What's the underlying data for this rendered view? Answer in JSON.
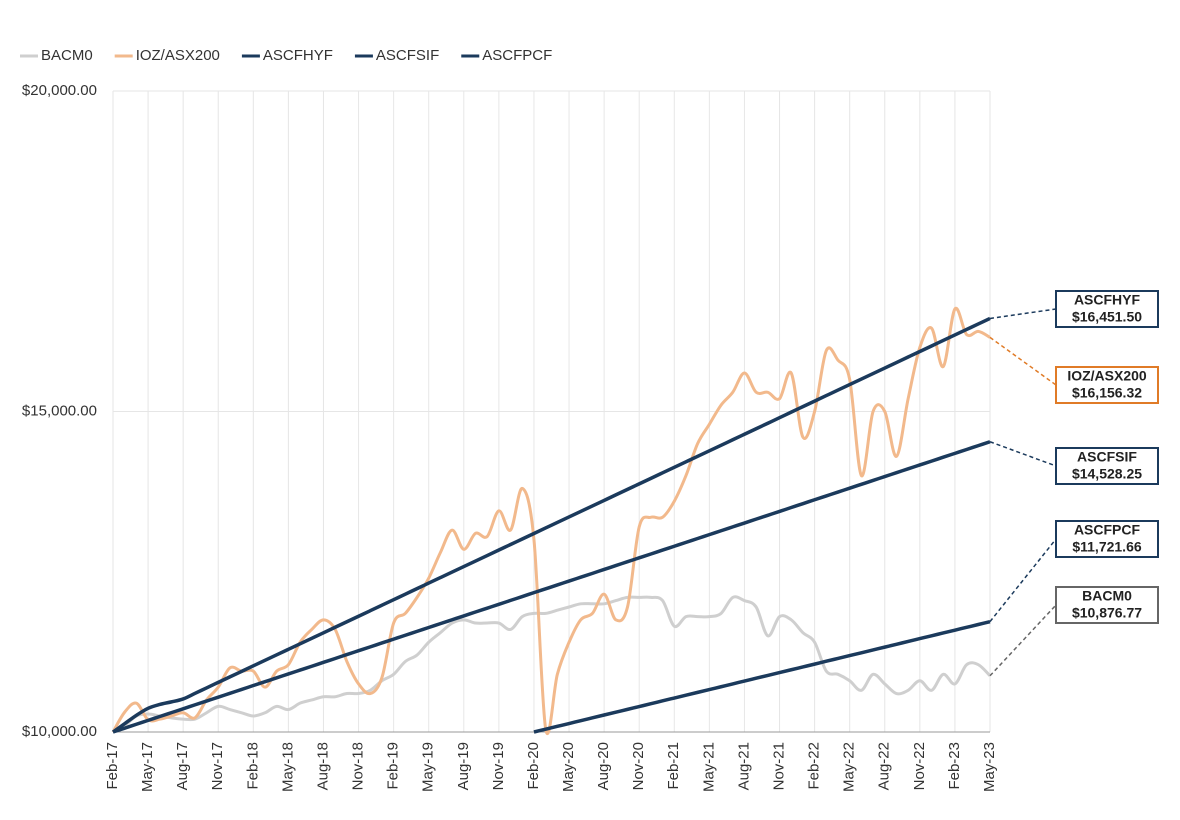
{
  "chart_data": {
    "type": "line",
    "categories": [
      "Feb-17",
      null,
      null,
      "May-17",
      null,
      null,
      "Aug-17",
      null,
      null,
      "Nov-17",
      null,
      null,
      "Feb-18",
      null,
      null,
      "May-18",
      null,
      null,
      "Aug-18",
      null,
      null,
      "Nov-18",
      null,
      null,
      "Feb-19",
      null,
      null,
      "May-19",
      null,
      null,
      "Aug-19",
      null,
      null,
      "Nov-19",
      null,
      null,
      "Feb-20",
      null,
      null,
      "May-20",
      null,
      null,
      "Aug-20",
      null,
      null,
      "Nov-20",
      null,
      null,
      "Feb-21",
      null,
      null,
      "May-21",
      null,
      null,
      "Aug-21",
      null,
      null,
      "Nov-21",
      null,
      null,
      "Feb-22",
      null,
      null,
      "May-22",
      null,
      null,
      "Aug-22",
      null,
      null,
      "Nov-22",
      null,
      null,
      "Feb-23",
      null,
      null,
      "May-23"
    ],
    "ylim": [
      10000,
      20000
    ],
    "yticks": [
      {
        "value": 10000,
        "label": "$10,000.00"
      },
      {
        "value": 15000,
        "label": "$15,000.00"
      },
      {
        "value": 20000,
        "label": "$20,000.00"
      }
    ],
    "grid": true,
    "legend": "top-left",
    "series": [
      {
        "name": "BACM0",
        "color": "#cfcfcf",
        "end_label": "$10,876.77",
        "values": [
          10000,
          10100,
          10250,
          10280,
          10250,
          10220,
          10200,
          10200,
          10300,
          10400,
          10350,
          10300,
          10250,
          10300,
          10400,
          10350,
          10450,
          10500,
          10550,
          10550,
          10600,
          10600,
          10650,
          10800,
          10900,
          11100,
          11200,
          11400,
          11550,
          11700,
          11750,
          11700,
          11700,
          11700,
          11600,
          11800,
          11850,
          11850,
          11900,
          11950,
          12000,
          12000,
          12000,
          12050,
          12100,
          12100,
          12100,
          12050,
          11650,
          11800,
          11800,
          11800,
          11850,
          12100,
          12050,
          11950,
          11500,
          11800,
          11750,
          11550,
          11400,
          10950,
          10900,
          10800,
          10650,
          10900,
          10750,
          10600,
          10650,
          10800,
          10650,
          10900,
          10750,
          11050,
          11050,
          10876.77
        ]
      },
      {
        "name": "IOZ/ASX200",
        "color": "#f2b98c",
        "end_label": "$16,156.32",
        "values": [
          10000,
          10310,
          10450,
          10190,
          10200,
          10250,
          10300,
          10220,
          10500,
          10700,
          11000,
          10950,
          10950,
          10700,
          10950,
          11050,
          11400,
          11600,
          11750,
          11600,
          11100,
          10750,
          10600,
          10850,
          11700,
          11850,
          12100,
          12400,
          12800,
          13150,
          12850,
          13100,
          13050,
          13450,
          13150,
          13800,
          13000,
          10050,
          10900,
          11400,
          11750,
          11850,
          12150,
          11750,
          11950,
          13200,
          13350,
          13350,
          13600,
          14000,
          14500,
          14800,
          15100,
          15300,
          15600,
          15300,
          15300,
          15200,
          15600,
          14600,
          15000,
          15950,
          15800,
          15500,
          14000,
          15000,
          15000,
          14300,
          15200,
          16000,
          16300,
          15700,
          16600,
          16200,
          16250,
          16156.32
        ]
      },
      {
        "name": "ASCFHYF",
        "color": "#1b3a5c",
        "end_label": "$16,451.50",
        "values": [
          10000,
          10130,
          10260,
          10370,
          10430,
          10470,
          10516,
          10601,
          10688,
          10774,
          10860,
          10946,
          11032,
          11118,
          11204,
          11290,
          11376,
          11462,
          11548,
          11634,
          11720,
          11806,
          11892,
          11978,
          12064,
          12150,
          12237,
          12323,
          12409,
          12495,
          12581,
          12667,
          12753,
          12839,
          12925,
          13011,
          13097,
          13183,
          13269,
          13355,
          13441,
          13527,
          13613,
          13699,
          13785,
          13871,
          13957,
          14043,
          14129,
          14215,
          14301,
          14387,
          14473,
          14559,
          14645,
          14731,
          14817,
          14903,
          14990,
          15076,
          15162,
          15248,
          15334,
          15420,
          15506,
          15592,
          15678,
          15764,
          15850,
          15936,
          16022,
          16108,
          16194,
          16280,
          16366,
          16451.5
        ]
      },
      {
        "name": "ASCFSIF",
        "color": "#1b3a5c",
        "end_label": "$14,528.25",
        "values": [
          10000,
          10060,
          10121,
          10181,
          10242,
          10302,
          10362,
          10423,
          10483,
          10543,
          10604,
          10664,
          10725,
          10785,
          10845,
          10906,
          10966,
          11026,
          11087,
          11147,
          11208,
          11268,
          11328,
          11389,
          11449,
          11509,
          11570,
          11630,
          11691,
          11751,
          11811,
          11872,
          11932,
          11992,
          12053,
          12113,
          12174,
          12234,
          12294,
          12355,
          12415,
          12475,
          12536,
          12596,
          12657,
          12717,
          12777,
          12838,
          12898,
          12958,
          13019,
          13079,
          13140,
          13200,
          13260,
          13321,
          13381,
          13441,
          13502,
          13562,
          13623,
          13683,
          13743,
          13804,
          13864,
          13924,
          13985,
          14045,
          14106,
          14166,
          14226,
          14287,
          14347,
          14407,
          14468,
          14528.25
        ]
      },
      {
        "name": "ASCFPCF",
        "color": "#1b3a5c",
        "end_label": "$11,721.66",
        "values": [
          null,
          null,
          null,
          null,
          null,
          null,
          null,
          null,
          null,
          null,
          null,
          null,
          null,
          null,
          null,
          null,
          null,
          null,
          null,
          null,
          null,
          null,
          null,
          null,
          null,
          null,
          null,
          null,
          null,
          null,
          null,
          null,
          null,
          null,
          null,
          null,
          10000,
          10044,
          10088,
          10132,
          10177,
          10221,
          10265,
          10309,
          10353,
          10397,
          10441,
          10486,
          10530,
          10574,
          10618,
          10662,
          10706,
          10750,
          10795,
          10839,
          10883,
          10927,
          10971,
          11015,
          11059,
          11104,
          11148,
          11192,
          11236,
          11280,
          11324,
          11368,
          11413,
          11457,
          11501,
          11545,
          11589,
          11633,
          11677,
          11721.66
        ]
      }
    ]
  }
}
